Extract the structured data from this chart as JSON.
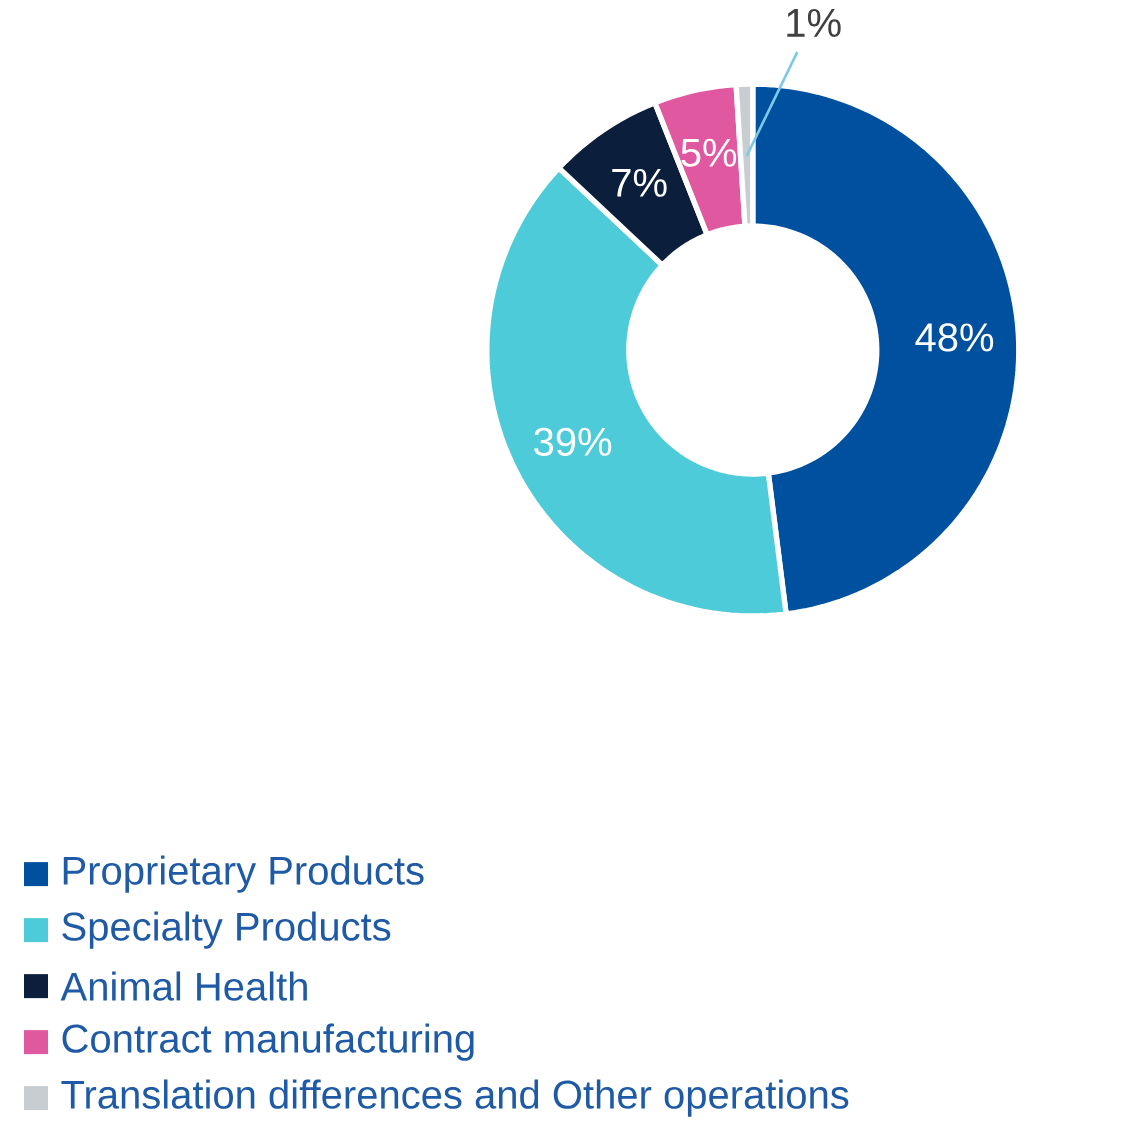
{
  "chart_data": {
    "type": "donut",
    "categories": [
      "Proprietary Products",
      "Specialty Products",
      "Animal Health",
      "Contract manufacturing",
      "Translation differences and Other operations"
    ],
    "values": [
      48,
      39,
      7,
      5,
      1
    ],
    "value_labels": [
      "48%",
      "39%",
      "7%",
      "5%",
      "1%"
    ],
    "colors": [
      "#0050a0",
      "#4ecbd9",
      "#0b1f3d",
      "#e0589f",
      "#c7cdd1"
    ],
    "legend": "bottom"
  }
}
